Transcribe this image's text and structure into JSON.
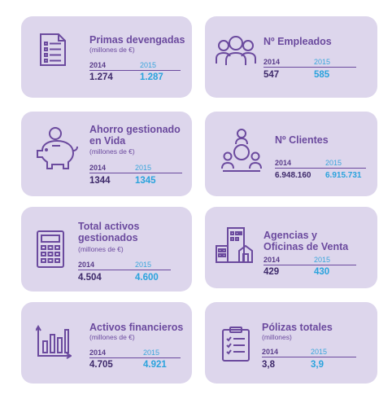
{
  "colors": {
    "card_bg": "#ddd6ec",
    "title": "#6b4a9e",
    "value_2014": "#3e2a6b",
    "value_2015": "#2aa3dd",
    "icon": "#6b4a9e"
  },
  "cards": [
    {
      "id": "primas",
      "icon": "document-list-icon",
      "title": [
        "Primas devengadas"
      ],
      "subtitle": "(millones de €)",
      "y2014": "2014",
      "y2015": "2015",
      "v2014": "1.274",
      "v2015": "1.287"
    },
    {
      "id": "empleados",
      "icon": "people-group-icon",
      "title": [
        "Nº Empleados"
      ],
      "subtitle": "",
      "y2014": "2014",
      "y2015": "2015",
      "v2014": "547",
      "v2015": "585"
    },
    {
      "id": "ahorro",
      "icon": "piggy-bank-icon",
      "title": [
        "Ahorro gestionado",
        "en Vida"
      ],
      "subtitle": "(millones de €)",
      "y2014": "2014",
      "y2015": "2015",
      "v2014": "1344",
      "v2015": "1345"
    },
    {
      "id": "clientes",
      "icon": "clients-network-icon",
      "title": [
        "Nº Clientes"
      ],
      "subtitle": "",
      "y2014": "2014",
      "y2015": "2015",
      "v2014": "6.948.160",
      "v2015": "6.915.731"
    },
    {
      "id": "activos",
      "icon": "calculator-icon",
      "title": [
        "Total activos",
        "gestionados"
      ],
      "subtitle": "(millones de €)",
      "y2014": "2014",
      "y2015": "2015",
      "v2014": "4.504",
      "v2015": "4.600"
    },
    {
      "id": "agencias",
      "icon": "buildings-icon",
      "title": [
        "Agencias y",
        "Oficinas de Venta"
      ],
      "subtitle": "",
      "y2014": "2014",
      "y2015": "2015",
      "v2014": "429",
      "v2015": "430"
    },
    {
      "id": "financieros",
      "icon": "bar-chart-icon",
      "title": [
        "Activos financieros"
      ],
      "subtitle": "(millones de €)",
      "y2014": "2014",
      "y2015": "2015",
      "v2014": "4.705",
      "v2015": "4.921"
    },
    {
      "id": "polizas",
      "icon": "clipboard-checklist-icon",
      "title": [
        "Pólizas totales"
      ],
      "subtitle": "(millones)",
      "y2014": "2014",
      "y2015": "2015",
      "v2014": "3,8",
      "v2015": "3,9"
    }
  ]
}
